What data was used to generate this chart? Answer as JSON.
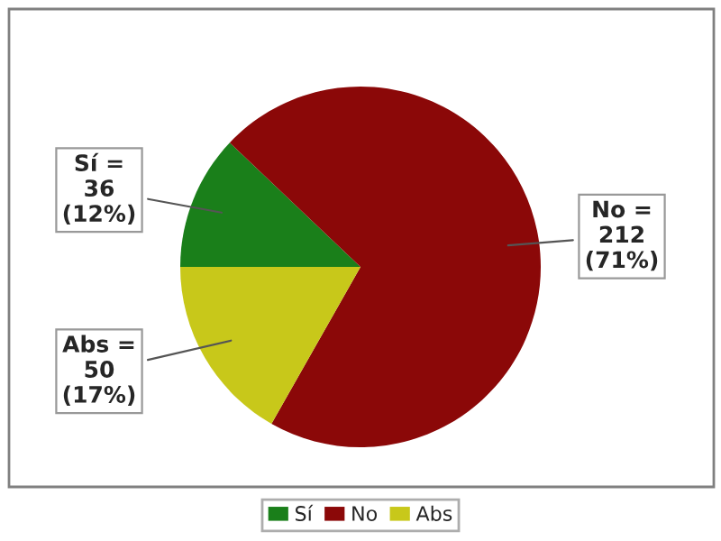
{
  "chart_data": {
    "type": "pie",
    "categories": [
      "Sí",
      "No",
      "Abs"
    ],
    "values": [
      36,
      212,
      50
    ],
    "colors": [
      "#1a7f1a",
      "#8b0808",
      "#c8c81a"
    ],
    "value_labels": [
      "Sí =\n36\n(12%)",
      "No =\n212\n(71%)",
      "Abs =\n50\n(17%)"
    ],
    "legend": "bottom"
  }
}
